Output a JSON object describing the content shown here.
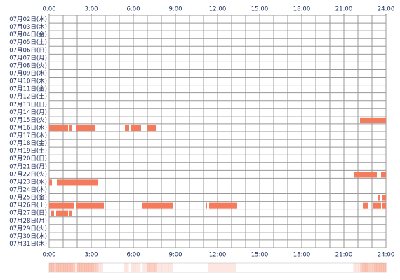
{
  "chart_data": {
    "type": "timeline",
    "xlim": [
      0,
      24
    ],
    "xticks": [
      {
        "value": 0,
        "label": "0:00"
      },
      {
        "value": 3,
        "label": "3:00"
      },
      {
        "value": 6,
        "label": "6:00"
      },
      {
        "value": 9,
        "label": "9:00"
      },
      {
        "value": 12,
        "label": "12:00"
      },
      {
        "value": 15,
        "label": "15:00"
      },
      {
        "value": 18,
        "label": "18:00"
      },
      {
        "value": 21,
        "label": "21:00"
      },
      {
        "value": 24,
        "label": "24:00"
      }
    ],
    "color": "#f47c5c",
    "rows": [
      {
        "label": "07月02日(水)",
        "segments": []
      },
      {
        "label": "07月03日(木)",
        "segments": []
      },
      {
        "label": "07月04日(金)",
        "segments": []
      },
      {
        "label": "07月05日(土)",
        "segments": []
      },
      {
        "label": "07月06日(日)",
        "segments": []
      },
      {
        "label": "07月07日(月)",
        "segments": []
      },
      {
        "label": "07月08日(火)",
        "segments": []
      },
      {
        "label": "07月09日(水)",
        "segments": []
      },
      {
        "label": "07月10日(木)",
        "segments": []
      },
      {
        "label": "07月11日(金)",
        "segments": []
      },
      {
        "label": "07月12日(土)",
        "segments": []
      },
      {
        "label": "07月13日(日)",
        "segments": []
      },
      {
        "label": "07月14日(月)",
        "segments": []
      },
      {
        "label": "07月15日(火)",
        "segments": [
          [
            22.15,
            24
          ]
        ]
      },
      {
        "label": "07月16日(水)",
        "segments": [
          [
            0,
            0.1
          ],
          [
            0.15,
            1.35
          ],
          [
            1.4,
            1.6
          ],
          [
            1.95,
            3.25
          ],
          [
            5.4,
            5.7
          ],
          [
            5.8,
            6.55
          ],
          [
            6.95,
            7.45
          ],
          [
            7.5,
            7.6
          ]
        ]
      },
      {
        "label": "07月17日(木)",
        "segments": []
      },
      {
        "label": "07月18日(金)",
        "segments": []
      },
      {
        "label": "07月19日(土)",
        "segments": []
      },
      {
        "label": "07月20日(日)",
        "segments": []
      },
      {
        "label": "07月21日(月)",
        "segments": []
      },
      {
        "label": "07月22日(火)",
        "segments": [
          [
            21.75,
            23.35
          ],
          [
            23.65,
            24
          ]
        ]
      },
      {
        "label": "07月23日(水)",
        "segments": [
          [
            0,
            0.2
          ],
          [
            0.55,
            3.5
          ]
        ]
      },
      {
        "label": "07月24日(木)",
        "segments": []
      },
      {
        "label": "07月25日(金)",
        "segments": [
          [
            23.4,
            23.6
          ],
          [
            23.7,
            24
          ]
        ]
      },
      {
        "label": "07月26日(土)",
        "segments": [
          [
            0,
            1.8
          ],
          [
            1.95,
            3.9
          ],
          [
            6.65,
            8.8
          ],
          [
            11.15,
            11.25
          ],
          [
            11.4,
            13.4
          ],
          [
            22.35,
            22.7
          ],
          [
            23.1,
            23.65
          ],
          [
            23.75,
            24
          ]
        ]
      },
      {
        "label": "07月27日(日)",
        "segments": [
          [
            0.1,
            0.35
          ],
          [
            0.5,
            1.35
          ],
          [
            1.4,
            1.65
          ]
        ]
      },
      {
        "label": "07月28日(月)",
        "segments": []
      },
      {
        "label": "07月29日(火)",
        "segments": []
      },
      {
        "label": "07月30日(水)",
        "segments": []
      },
      {
        "label": "07月31日(木)",
        "segments": []
      }
    ]
  }
}
